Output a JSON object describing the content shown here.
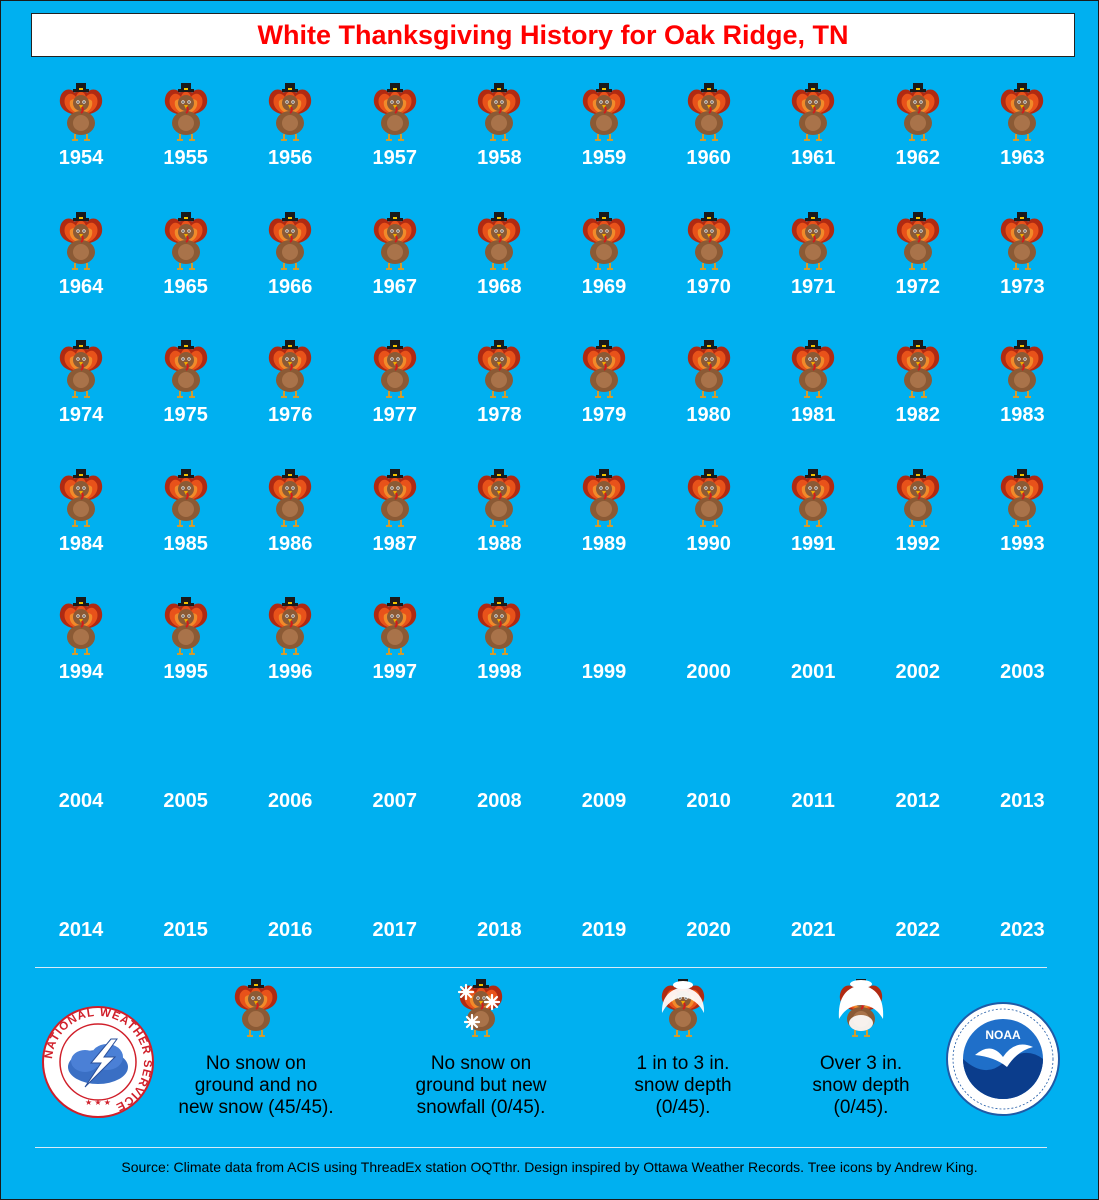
{
  "title": "White Thanksgiving History for Oak Ridge, TN",
  "colors": {
    "background": "#00b0f0",
    "title": "#ff0000",
    "year_text": "#ffffff"
  },
  "rows": [
    [
      "1954",
      "1955",
      "1956",
      "1957",
      "1958",
      "1959",
      "1960",
      "1961",
      "1962",
      "1963"
    ],
    [
      "1964",
      "1965",
      "1966",
      "1967",
      "1968",
      "1969",
      "1970",
      "1971",
      "1972",
      "1973"
    ],
    [
      "1974",
      "1975",
      "1976",
      "1977",
      "1978",
      "1979",
      "1980",
      "1981",
      "1982",
      "1983"
    ],
    [
      "1984",
      "1985",
      "1986",
      "1987",
      "1988",
      "1989",
      "1990",
      "1991",
      "1992",
      "1993"
    ],
    [
      "1994",
      "1995",
      "1996",
      "1997",
      "1998",
      "1999",
      "2000",
      "2001",
      "2002",
      "2003"
    ],
    [
      "2004",
      "2005",
      "2006",
      "2007",
      "2008",
      "2009",
      "2010",
      "2011",
      "2012",
      "2013"
    ],
    [
      "2014",
      "2015",
      "2016",
      "2017",
      "2018",
      "2019",
      "2020",
      "2021",
      "2022",
      "2023"
    ]
  ],
  "years_with_icon": [
    "1954",
    "1955",
    "1956",
    "1957",
    "1958",
    "1959",
    "1960",
    "1961",
    "1962",
    "1963",
    "1964",
    "1965",
    "1966",
    "1967",
    "1968",
    "1969",
    "1970",
    "1971",
    "1972",
    "1973",
    "1974",
    "1975",
    "1976",
    "1977",
    "1978",
    "1979",
    "1980",
    "1981",
    "1982",
    "1983",
    "1984",
    "1985",
    "1986",
    "1987",
    "1988",
    "1989",
    "1990",
    "1991",
    "1992",
    "1993",
    "1994",
    "1995",
    "1996",
    "1997",
    "1998"
  ],
  "legend": [
    {
      "icon": "turkey-icon",
      "label": [
        "No snow on",
        "ground and no",
        "new snow (45/45)."
      ]
    },
    {
      "icon": "turkey-snowflake-icon",
      "label": [
        "No snow on",
        "ground but new",
        "snowfall (0/45)."
      ]
    },
    {
      "icon": "turkey-light-snow-icon",
      "label": [
        "1 in to 3 in.",
        "snow depth",
        "(0/45)."
      ]
    },
    {
      "icon": "turkey-heavy-snow-icon",
      "label": [
        "Over 3 in.",
        "snow depth",
        "(0/45)."
      ]
    }
  ],
  "logos": {
    "left": {
      "icon": "nws-logo-icon",
      "text": "NATIONAL WEATHER SERVICE"
    },
    "right": {
      "icon": "noaa-logo-icon",
      "text": "NOAA"
    }
  },
  "footer": "Source: Climate data from ACIS using ThreadEx station OQTthr. Design inspired by Ottawa Weather Records. Tree icons by Andrew King."
}
